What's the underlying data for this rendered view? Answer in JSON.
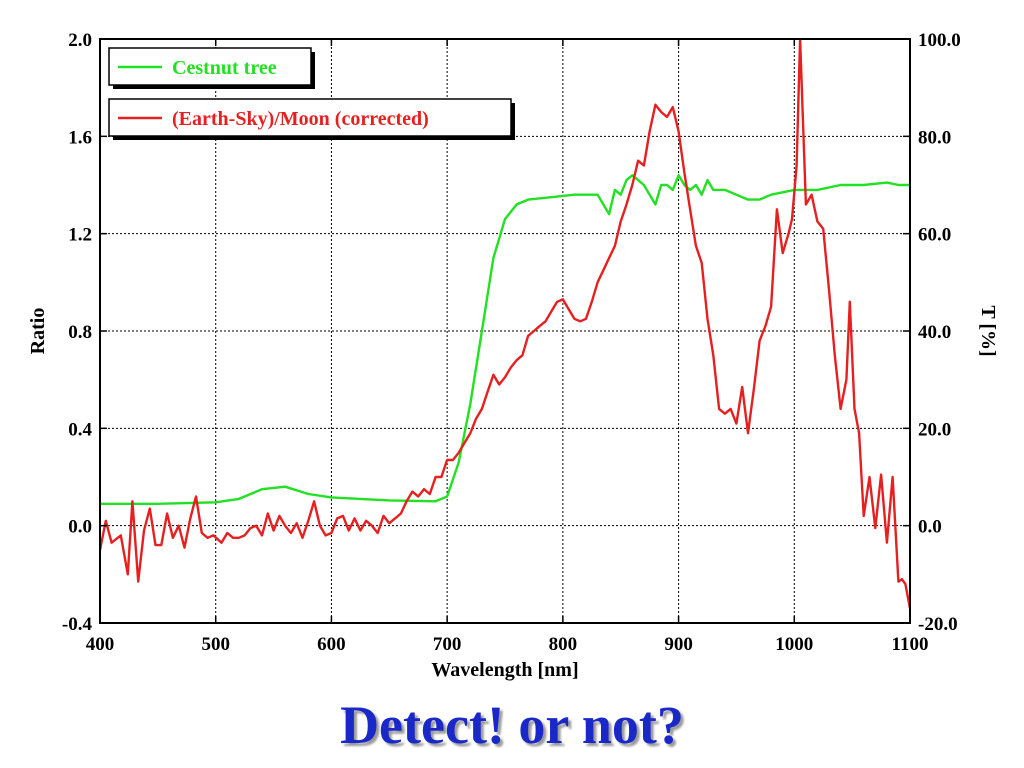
{
  "caption": "Detect! or not?",
  "chart_data": {
    "type": "line",
    "title": "",
    "xlabel": "Wavelength [nm]",
    "ylabel": "Ratio",
    "ylabel_right": "T [%]",
    "xlim": [
      400,
      1100
    ],
    "ylim": [
      -0.4,
      2.0
    ],
    "ylim_right": [
      -20.0,
      100.0
    ],
    "x_ticks": [
      "400",
      "500",
      "600",
      "700",
      "800",
      "900",
      "1000",
      "1100"
    ],
    "y_ticks": [
      "-0.4",
      "0.0",
      "0.4",
      "0.8",
      "1.2",
      "1.6",
      "2.0"
    ],
    "y_ticks_right": [
      "-20.0",
      "0.0",
      "20.0",
      "40.0",
      "60.0",
      "80.0",
      "100.0"
    ],
    "grid": true,
    "legend_position": "top-left",
    "series": [
      {
        "name": "Cestnut tree",
        "color": "#22e022",
        "axis": "right",
        "x": [
          400,
          450,
          500,
          520,
          540,
          560,
          580,
          600,
          650,
          690,
          700,
          710,
          720,
          730,
          740,
          750,
          760,
          770,
          790,
          810,
          830,
          835,
          840,
          845,
          850,
          855,
          860,
          865,
          870,
          875,
          880,
          885,
          890,
          895,
          900,
          905,
          910,
          915,
          920,
          925,
          930,
          940,
          950,
          960,
          970,
          980,
          1000,
          1020,
          1040,
          1060,
          1080,
          1090,
          1100
        ],
        "y": [
          4.5,
          4.5,
          4.8,
          5.5,
          7.5,
          8,
          6.5,
          5.8,
          5.2,
          5,
          6,
          13,
          25,
          40,
          55,
          63,
          66,
          67,
          67.5,
          68,
          68,
          66,
          64,
          69,
          68,
          71,
          72,
          71,
          70,
          68,
          66,
          70,
          70,
          69,
          72,
          70,
          69,
          70,
          68,
          71,
          69,
          69,
          68,
          67,
          67,
          68,
          69,
          69,
          70,
          70,
          70.5,
          70,
          70
        ]
      },
      {
        "name": "(Earth-Sky)/Moon (corrected)",
        "color": "#e62020",
        "axis": "left",
        "x": [
          400,
          405,
          410,
          418,
          424,
          428,
          433,
          438,
          443,
          448,
          453,
          458,
          463,
          468,
          473,
          478,
          483,
          488,
          493,
          498,
          505,
          510,
          515,
          520,
          525,
          530,
          535,
          540,
          545,
          550,
          555,
          560,
          565,
          570,
          575,
          580,
          585,
          590,
          595,
          600,
          605,
          610,
          615,
          620,
          625,
          630,
          635,
          640,
          645,
          650,
          655,
          660,
          665,
          670,
          675,
          680,
          685,
          690,
          695,
          700,
          705,
          710,
          715,
          720,
          725,
          730,
          735,
          740,
          745,
          750,
          755,
          760,
          765,
          770,
          775,
          780,
          785,
          790,
          795,
          800,
          805,
          810,
          815,
          820,
          825,
          830,
          835,
          840,
          845,
          850,
          855,
          860,
          865,
          870,
          875,
          880,
          885,
          890,
          895,
          900,
          905,
          910,
          915,
          920,
          925,
          930,
          935,
          940,
          945,
          950,
          955,
          960,
          965,
          970,
          975,
          980,
          985,
          990,
          995,
          998,
          1002,
          1005,
          1010,
          1015,
          1020,
          1025,
          1030,
          1035,
          1040,
          1045,
          1048,
          1052,
          1056,
          1060,
          1065,
          1070,
          1075,
          1080,
          1085,
          1090,
          1093,
          1096,
          1100
        ],
        "y": [
          -0.1,
          0.02,
          -0.07,
          -0.04,
          -0.2,
          0.1,
          -0.23,
          -0.02,
          0.07,
          -0.08,
          -0.08,
          0.05,
          -0.05,
          0.0,
          -0.09,
          0.03,
          0.12,
          -0.03,
          -0.05,
          -0.04,
          -0.07,
          -0.03,
          -0.05,
          -0.05,
          -0.04,
          -0.01,
          0.0,
          -0.04,
          0.05,
          -0.02,
          0.04,
          0.0,
          -0.03,
          0.01,
          -0.05,
          0.02,
          0.1,
          0.0,
          -0.04,
          -0.03,
          0.03,
          0.04,
          -0.02,
          0.03,
          -0.02,
          0.02,
          0.0,
          -0.03,
          0.04,
          0.01,
          0.03,
          0.05,
          0.1,
          0.14,
          0.12,
          0.15,
          0.13,
          0.2,
          0.2,
          0.27,
          0.27,
          0.3,
          0.34,
          0.38,
          0.44,
          0.48,
          0.55,
          0.62,
          0.58,
          0.61,
          0.65,
          0.68,
          0.7,
          0.78,
          0.8,
          0.82,
          0.84,
          0.88,
          0.92,
          0.93,
          0.89,
          0.85,
          0.84,
          0.85,
          0.92,
          1.0,
          1.05,
          1.1,
          1.15,
          1.25,
          1.32,
          1.4,
          1.5,
          1.48,
          1.62,
          1.73,
          1.7,
          1.68,
          1.72,
          1.62,
          1.45,
          1.3,
          1.15,
          1.08,
          0.85,
          0.7,
          0.48,
          0.46,
          0.48,
          0.42,
          0.57,
          0.38,
          0.56,
          0.76,
          0.82,
          0.9,
          1.3,
          1.12,
          1.2,
          1.26,
          1.48,
          2.0,
          1.32,
          1.36,
          1.25,
          1.22,
          0.97,
          0.7,
          0.48,
          0.6,
          0.92,
          0.48,
          0.38,
          0.04,
          0.2,
          -0.01,
          0.21,
          -0.07,
          0.2,
          -0.23,
          -0.22,
          -0.24,
          -0.34
        ]
      }
    ]
  }
}
